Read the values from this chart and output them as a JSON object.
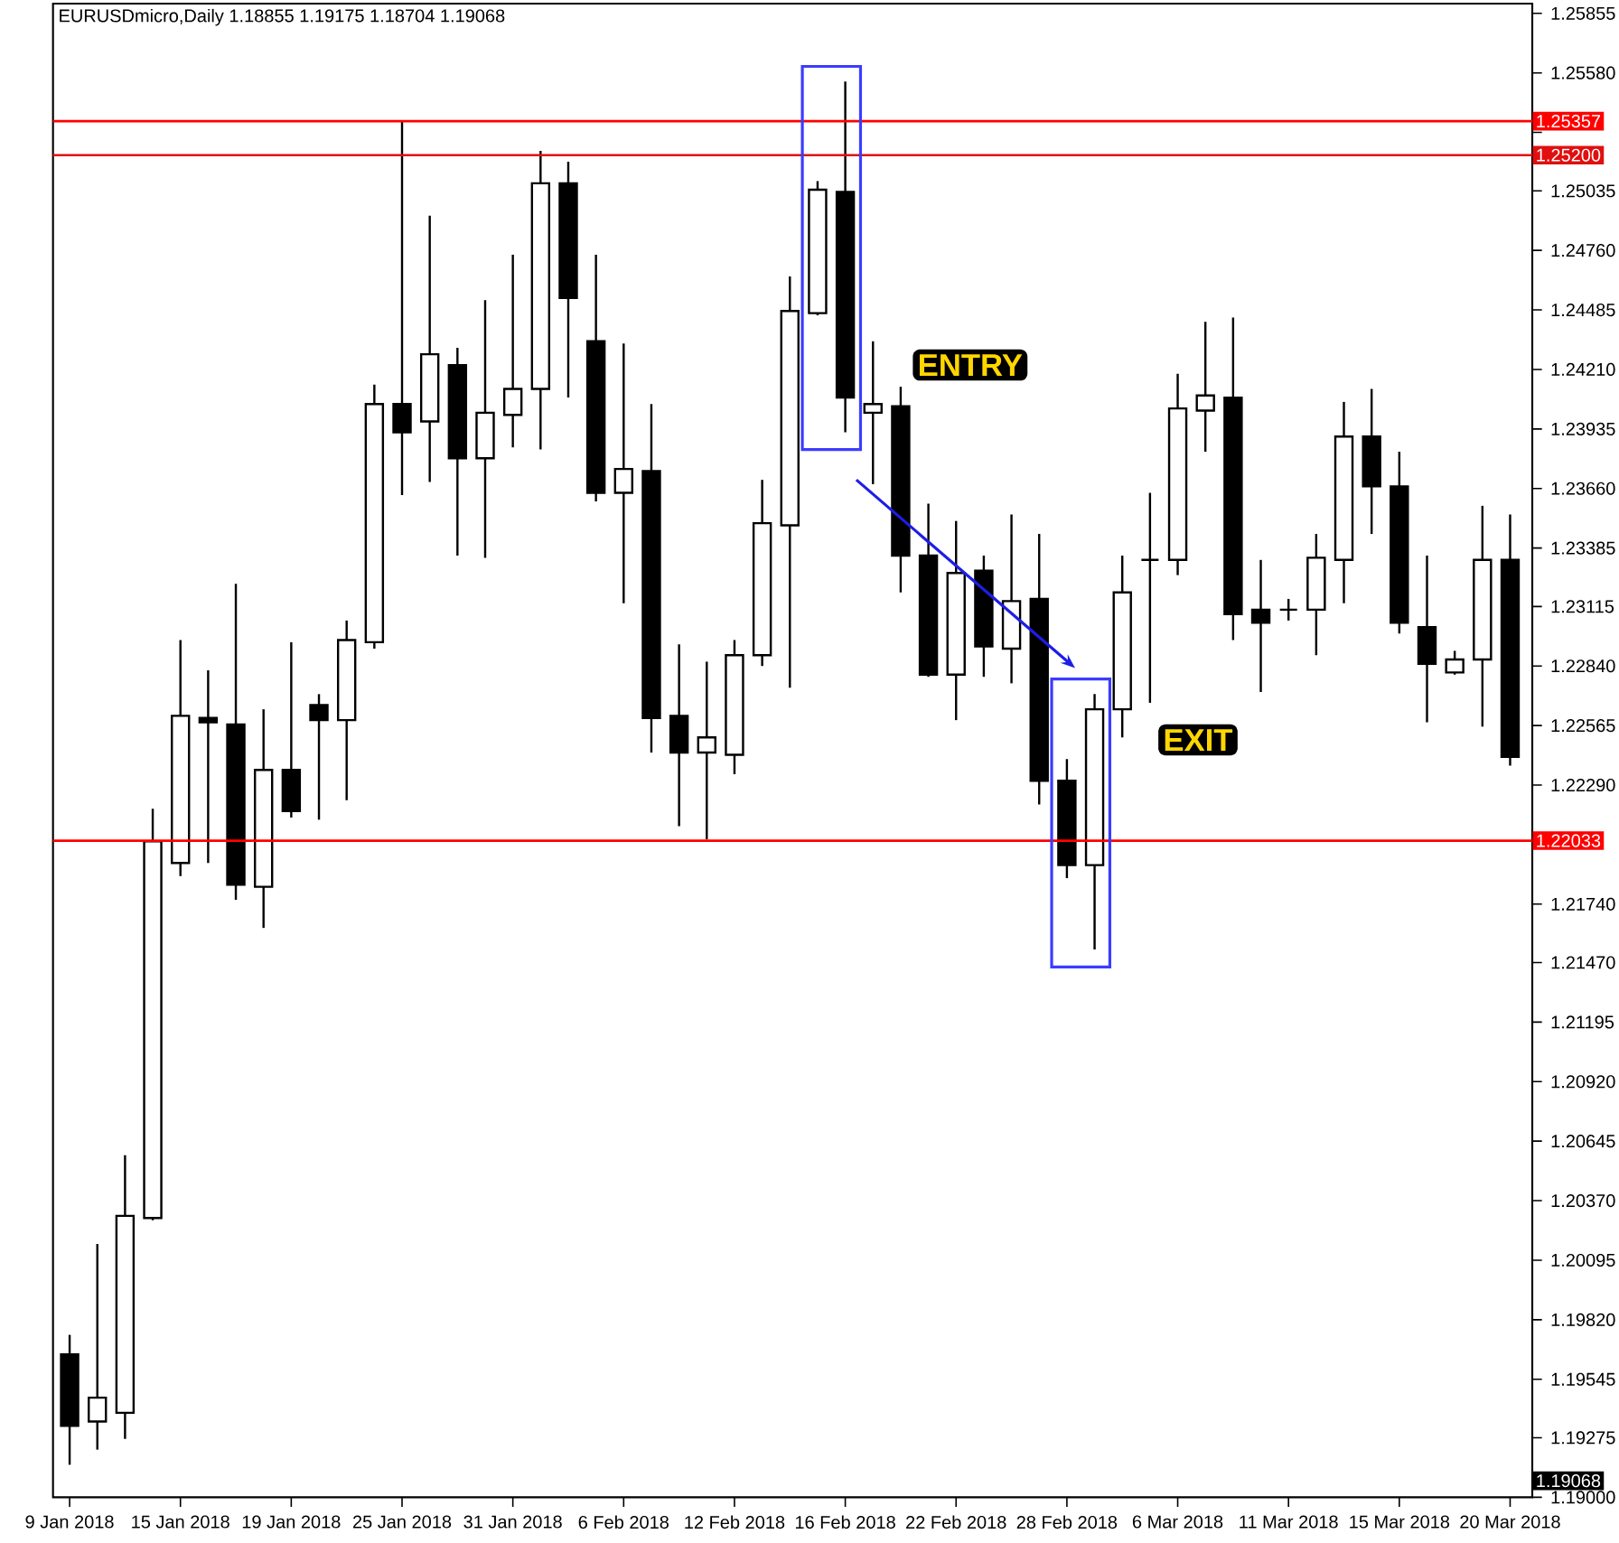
{
  "chart_data": {
    "type": "candlestick",
    "title": "EURUSDmicro,Daily  1.18855 1.19175 1.18704 1.19068",
    "categories": [
      "9 Jan 2018",
      null,
      null,
      null,
      "15 Jan 2018",
      null,
      null,
      null,
      "19 Jan 2018",
      null,
      null,
      null,
      "25 Jan 2018",
      null,
      null,
      null,
      "31 Jan 2018",
      null,
      null,
      null,
      "6 Feb 2018",
      null,
      null,
      null,
      "12 Feb 2018",
      null,
      null,
      null,
      "16 Feb 2018",
      null,
      null,
      null,
      "22 Feb 2018",
      null,
      null,
      null,
      "28 Feb 2018",
      null,
      null,
      null,
      "6 Mar 2018",
      null,
      null,
      null,
      "11 Mar 2018",
      null,
      null,
      null,
      "15 Mar 2018",
      null,
      null,
      null,
      "20 Mar 2018"
    ],
    "ohlc": [
      [
        1.1966,
        1.1975,
        1.1915,
        1.1933
      ],
      [
        1.1935,
        1.2017,
        1.1922,
        1.1946
      ],
      [
        1.1939,
        1.2058,
        1.1927,
        1.203
      ],
      [
        1.2029,
        1.2218,
        1.2028,
        1.2203
      ],
      [
        1.2193,
        1.2296,
        1.2187,
        1.2261
      ],
      [
        1.226,
        1.2282,
        1.2193,
        1.2258
      ],
      [
        1.2257,
        1.2322,
        1.2176,
        1.2183
      ],
      [
        1.2182,
        1.2264,
        1.2163,
        1.2236
      ],
      [
        1.2236,
        1.2295,
        1.2214,
        1.2217
      ],
      [
        1.2266,
        1.2271,
        1.2213,
        1.2259
      ],
      [
        1.2259,
        1.2305,
        1.2222,
        1.2296
      ],
      [
        1.2295,
        1.2414,
        1.2292,
        1.2405
      ],
      [
        1.2405,
        1.2536,
        1.2363,
        1.2392
      ],
      [
        1.2397,
        1.2492,
        1.2369,
        1.2428
      ],
      [
        1.2423,
        1.2431,
        1.2335,
        1.238
      ],
      [
        1.238,
        1.2453,
        1.2334,
        1.2401
      ],
      [
        1.24,
        1.2474,
        1.2385,
        1.2412
      ],
      [
        1.2412,
        1.2522,
        1.2384,
        1.2507
      ],
      [
        1.2507,
        1.2517,
        1.2408,
        1.2454
      ],
      [
        1.2434,
        1.2474,
        1.236,
        1.2364
      ],
      [
        1.2364,
        1.2433,
        1.2313,
        1.2375
      ],
      [
        1.2374,
        1.2405,
        1.2244,
        1.226
      ],
      [
        1.2261,
        1.2294,
        1.221,
        1.2244
      ],
      [
        1.2244,
        1.2286,
        1.2204,
        1.2251
      ],
      [
        1.2243,
        1.2296,
        1.2234,
        1.2289
      ],
      [
        1.2289,
        1.237,
        1.2284,
        1.235
      ],
      [
        1.2349,
        1.2464,
        1.2274,
        1.2448
      ],
      [
        1.2447,
        1.2508,
        1.2446,
        1.2504
      ],
      [
        1.2503,
        1.2554,
        1.2392,
        1.2408
      ],
      [
        1.2401,
        1.2434,
        1.2368,
        1.2405
      ],
      [
        1.2404,
        1.2413,
        1.2318,
        1.2335
      ],
      [
        1.2335,
        1.2359,
        1.2279,
        1.228
      ],
      [
        1.228,
        1.2351,
        1.2259,
        1.2327
      ],
      [
        1.2328,
        1.2335,
        1.2279,
        1.2293
      ],
      [
        1.2292,
        1.2354,
        1.2276,
        1.2314
      ],
      [
        1.2315,
        1.2345,
        1.222,
        1.2231
      ],
      [
        1.2231,
        1.2241,
        1.2186,
        1.2192
      ],
      [
        1.2192,
        1.2271,
        1.2153,
        1.2264
      ],
      [
        1.2264,
        1.2335,
        1.2251,
        1.2318
      ],
      [
        1.2333,
        1.2364,
        1.2267,
        1.2333
      ],
      [
        1.2333,
        1.2419,
        1.2326,
        1.2403
      ],
      [
        1.2402,
        1.2443,
        1.2383,
        1.2409
      ],
      [
        1.2408,
        1.2445,
        1.2296,
        1.2308
      ],
      [
        1.231,
        1.2333,
        1.2272,
        1.2304
      ],
      [
        1.231,
        1.2315,
        1.2305,
        1.231
      ],
      [
        1.231,
        1.2345,
        1.2289,
        1.2334
      ],
      [
        1.2333,
        1.2406,
        1.2313,
        1.239
      ],
      [
        1.239,
        1.2412,
        1.2345,
        1.2367
      ],
      [
        1.2367,
        1.2383,
        1.2299,
        1.2304
      ],
      [
        1.2302,
        1.2335,
        1.2258,
        1.2285
      ],
      [
        1.2281,
        1.2291,
        1.228,
        1.2287
      ],
      [
        1.2287,
        1.2358,
        1.2256,
        1.2333
      ],
      [
        1.2333,
        1.2354,
        1.2238,
        1.2242
      ]
    ],
    "ylim": [
      1.19,
      1.259
    ],
    "yticks": [
      {
        "value": 1.25855,
        "label": "1.25855"
      },
      {
        "value": 1.2558,
        "label": "1.25580"
      },
      {
        "value": 1.25305,
        "label": null
      },
      {
        "value": 1.25035,
        "label": "1.25035"
      },
      {
        "value": 1.2476,
        "label": "1.24760"
      },
      {
        "value": 1.24485,
        "label": "1.24485"
      },
      {
        "value": 1.2421,
        "label": "1.24210"
      },
      {
        "value": 1.23935,
        "label": "1.23935"
      },
      {
        "value": 1.2366,
        "label": "1.23660"
      },
      {
        "value": 1.23385,
        "label": "1.23385"
      },
      {
        "value": 1.23115,
        "label": "1.23115"
      },
      {
        "value": 1.2284,
        "label": "1.22840"
      },
      {
        "value": 1.22565,
        "label": "1.22565"
      },
      {
        "value": 1.2229,
        "label": "1.22290"
      },
      {
        "value": 1.2174,
        "label": "1.21740"
      },
      {
        "value": 1.2147,
        "label": "1.21470"
      },
      {
        "value": 1.21195,
        "label": "1.21195"
      },
      {
        "value": 1.2092,
        "label": "1.20920"
      },
      {
        "value": 1.20645,
        "label": "1.20645"
      },
      {
        "value": 1.2037,
        "label": "1.20370"
      },
      {
        "value": 1.20095,
        "label": "1.20095"
      },
      {
        "value": 1.1982,
        "label": "1.19820"
      },
      {
        "value": 1.19545,
        "label": "1.19545"
      },
      {
        "value": 1.19275,
        "label": "1.19275"
      },
      {
        "value": 1.19,
        "label": "1.19000"
      }
    ],
    "ref_lines": [
      {
        "axis": "y",
        "value": 1.25357,
        "label": "1.25357",
        "color": "#ff0000"
      },
      {
        "axis": "y",
        "value": 1.252,
        "label": "1.25200",
        "color": "#e01010"
      },
      {
        "axis": "y",
        "value": 1.22033,
        "label": "1.22033",
        "color": "#ff0000"
      }
    ],
    "annotations": [
      "ENTRY",
      "EXIT",
      "1.19068"
    ]
  }
}
